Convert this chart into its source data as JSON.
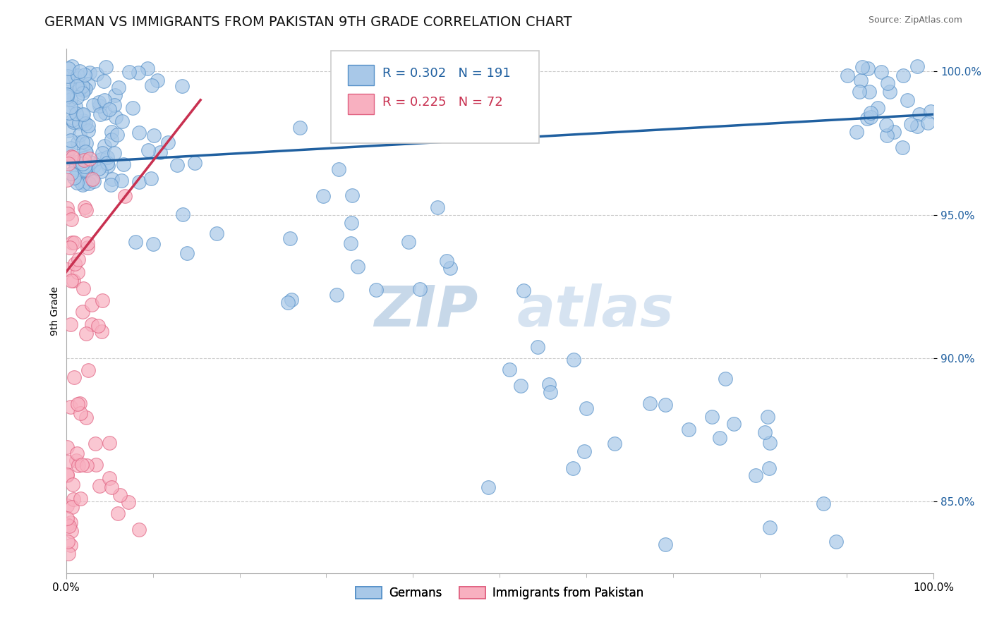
{
  "title": "GERMAN VS IMMIGRANTS FROM PAKISTAN 9TH GRADE CORRELATION CHART",
  "source": "Source: ZipAtlas.com",
  "ylabel": "9th Grade",
  "xlim": [
    0.0,
    1.0
  ],
  "ylim": [
    0.825,
    1.008
  ],
  "yticks": [
    0.85,
    0.9,
    0.95,
    1.0
  ],
  "ytick_labels": [
    "85.0%",
    "90.0%",
    "95.0%",
    "100.0%"
  ],
  "xtick_labels": [
    "0.0%",
    "100.0%"
  ],
  "blue_color": "#a8c8e8",
  "pink_color": "#f8b0c0",
  "blue_edge_color": "#5590c8",
  "pink_edge_color": "#e06080",
  "blue_line_color": "#2060a0",
  "pink_line_color": "#c83050",
  "background_color": "#ffffff",
  "legend_label_blue": "Germans",
  "legend_label_pink": "Immigrants from Pakistan",
  "title_fontsize": 14,
  "axis_label_fontsize": 10,
  "tick_fontsize": 11,
  "blue_r": "R = 0.302",
  "blue_n": "N = 191",
  "pink_r": "R = 0.225",
  "pink_n": "N = 72",
  "blue_trend_x": [
    0.0,
    1.0
  ],
  "blue_trend_y": [
    0.968,
    0.985
  ],
  "pink_trend_x": [
    0.0,
    0.155
  ],
  "pink_trend_y": [
    0.93,
    0.99
  ]
}
